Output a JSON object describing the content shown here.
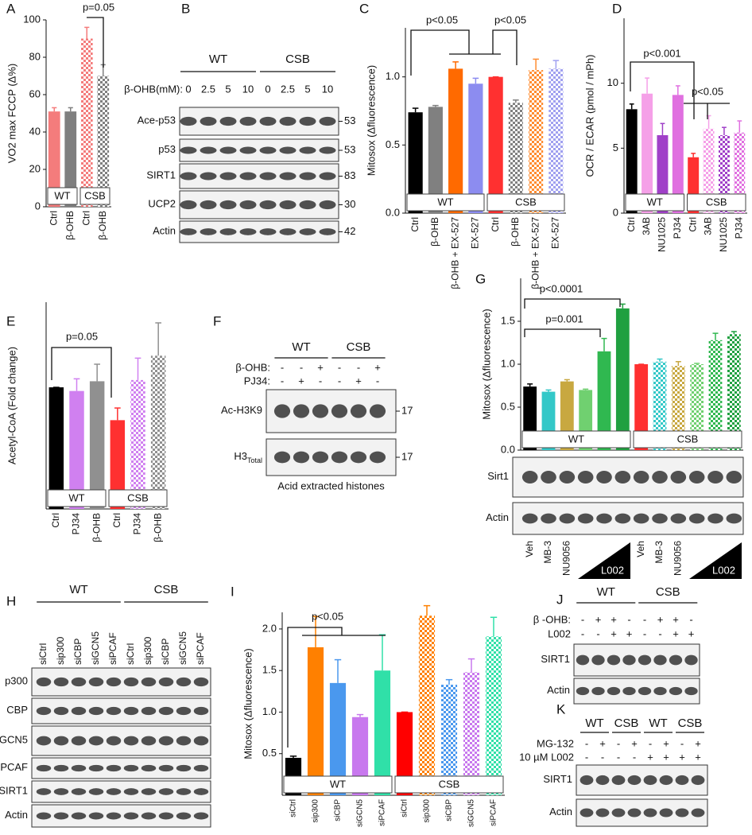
{
  "chart_data": [
    {
      "panel": "A",
      "type": "bar",
      "y_label": "VO2 max FCCP (Δ%)",
      "categories": [
        "Ctrl",
        "β-OHB",
        "Ctrl",
        "β-OHB"
      ],
      "values": [
        51,
        51,
        90,
        70
      ],
      "errors": [
        2,
        2,
        6,
        6
      ],
      "colors": [
        "#f47c7c",
        "#7f7f7f",
        "#f47c7c",
        "#7f7f7f"
      ],
      "checkered": [
        false,
        false,
        true,
        true
      ],
      "groups": [
        "WT",
        "CSB"
      ],
      "annotations": [
        "p=0.05"
      ],
      "ylim": [
        0,
        100
      ],
      "yticks": [
        0,
        20,
        40,
        60,
        80,
        100
      ]
    },
    {
      "panel": "C",
      "type": "bar",
      "y_label": "Mitosox (Δfluorescence)",
      "categories": [
        "Ctrl",
        "β-OHB",
        "β-OHB + EX-527",
        "EX-527",
        "Ctrl",
        "β-OHB",
        "β-OHB + EX-527",
        "EX-527"
      ],
      "values": [
        0.74,
        0.78,
        1.06,
        0.95,
        1.0,
        0.81,
        1.05,
        1.06
      ],
      "errors": [
        0.03,
        0.01,
        0.05,
        0.04,
        0,
        0.02,
        0.08,
        0.06
      ],
      "colors": [
        "#000000",
        "#808080",
        "#ff6a00",
        "#8c8cf0",
        "#ff3030",
        "#808080",
        "#ff8c30",
        "#a0a0f0"
      ],
      "checkered": [
        false,
        false,
        false,
        false,
        false,
        true,
        true,
        true
      ],
      "groups": [
        "WT",
        "CSB"
      ],
      "annotations": [
        "p<0.05",
        "p<0.05"
      ],
      "ylim": [
        0,
        1.36
      ],
      "yticks": [
        {
          "value": 0,
          "label": "0.0"
        },
        0.5,
        {
          "value": 1,
          "label": "1.0"
        }
      ]
    },
    {
      "panel": "D",
      "type": "bar",
      "y_label": "OCR / ECAR (pmol / mPh)",
      "categories": [
        "Ctrl",
        "3AB",
        "NU1025",
        "PJ34",
        "Ctrl",
        "3AB",
        "NU1025",
        "PJ34"
      ],
      "values": [
        8.0,
        9.2,
        6.0,
        9.1,
        4.3,
        6.5,
        6.0,
        6.2
      ],
      "errors": [
        0.4,
        1.2,
        0.9,
        0.7,
        0.3,
        1.0,
        0.6,
        0.9
      ],
      "colors": [
        "#000000",
        "#f5a0e8",
        "#a040c8",
        "#e070e0",
        "#ff3030",
        "#f5a0e8",
        "#a040c8",
        "#e070e0"
      ],
      "checkered": [
        false,
        false,
        false,
        false,
        false,
        true,
        true,
        true
      ],
      "groups": [
        "WT",
        "CSB"
      ],
      "annotations": [
        "p<0.001",
        "p<0.05"
      ],
      "ylim": [
        0,
        15
      ],
      "yticks": [
        0,
        5,
        10
      ]
    },
    {
      "panel": "E",
      "type": "bar",
      "y_label": "Acetyl-CoA (Fold change)",
      "categories": [
        "Ctrl",
        "PJ34",
        "β-OHB",
        "Ctrl",
        "PJ34",
        "β-OHB"
      ],
      "values": [
        1.0,
        0.97,
        1.05,
        0.73,
        1.06,
        1.26
      ],
      "errors": [
        0,
        0.1,
        0.14,
        0.1,
        0.18,
        0.27
      ],
      "colors": [
        "#000000",
        "#d080f0",
        "#909090",
        "#ff3030",
        "#d080f0",
        "#909090"
      ],
      "checkered": [
        false,
        false,
        false,
        false,
        true,
        true
      ],
      "groups": [
        "WT",
        "CSB"
      ],
      "annotations": [
        "p=0.05"
      ],
      "ylim": [
        0,
        1.7
      ]
    },
    {
      "panel": "G",
      "type": "bar",
      "y_label": "Mitosox (Δfluorescence)",
      "categories": [
        "Veh",
        "MB-3",
        "NU9056",
        null,
        "L002",
        null,
        "Veh",
        "MB-3",
        "NU9056",
        null,
        "L002",
        null
      ],
      "values": [
        0.74,
        0.68,
        0.8,
        0.7,
        1.15,
        1.65,
        1.0,
        1.03,
        0.98,
        1.0,
        1.28,
        1.35
      ],
      "errors": [
        0.03,
        0.02,
        0.02,
        0.01,
        0.15,
        0.05,
        0,
        0.03,
        0.05,
        0.01,
        0.08,
        0.03
      ],
      "colors": [
        "#000000",
        "#33c8c8",
        "#c8a840",
        "#70d070",
        "#30b850",
        "#20a040",
        "#ff3030",
        "#33c8c8",
        "#c8a840",
        "#70d070",
        "#30b850",
        "#20a040"
      ],
      "checkered": [
        false,
        false,
        false,
        false,
        false,
        false,
        false,
        true,
        true,
        true,
        true,
        true
      ],
      "groups": [
        "WT",
        "CSB"
      ],
      "annotations": [
        "p<0.0001",
        "p=0.001"
      ],
      "ylim": [
        0,
        2
      ],
      "yticks": [
        {
          "value": 0,
          "label": "0.0"
        },
        0.5,
        {
          "value": 1,
          "label": "1.0"
        },
        1.5
      ]
    },
    {
      "panel": "I",
      "type": "bar",
      "y_label": "Mitosox (Δfluorescence)",
      "categories": [
        "siCtrl",
        "sip300",
        "siCBP",
        "siGCN5",
        "siPCAF",
        "siCtrl",
        "sip300",
        "siCBP",
        "siGCN5",
        "siPCAF"
      ],
      "values": [
        0.45,
        1.78,
        1.35,
        0.94,
        1.5,
        1.0,
        2.16,
        1.33,
        1.48,
        1.91
      ],
      "errors": [
        0.02,
        0.37,
        0.28,
        0.03,
        0.43,
        0,
        0.12,
        0.06,
        0.16,
        0.23
      ],
      "colors": [
        "#000000",
        "#ff8000",
        "#4a98ee",
        "#c878ee",
        "#30e0a8",
        "#ff0000",
        "#ff8000",
        "#4a98ee",
        "#c878ee",
        "#30e0a8"
      ],
      "checkered": [
        false,
        false,
        false,
        false,
        false,
        false,
        true,
        true,
        true,
        true
      ],
      "groups": [
        "WT",
        "CSB"
      ],
      "annotations": [
        "p<0.05"
      ],
      "ylim": [
        0,
        2.2
      ],
      "yticks": [
        0.5,
        {
          "value": 1,
          "label": "1.0"
        },
        1.5,
        {
          "value": 2,
          "label": "2.0"
        }
      ]
    }
  ],
  "blots": {
    "B": {
      "letter": "B",
      "groups": [
        "WT",
        "CSB"
      ],
      "conditions": [
        {
          "label": "β-OHB(mM):",
          "values": [
            "0",
            "2.5",
            "5",
            "10",
            "0",
            "2.5",
            "5",
            "10"
          ]
        }
      ],
      "rows": [
        {
          "label": "Ace-p53",
          "mw": "53"
        },
        {
          "label": "p53",
          "mw": "53"
        },
        {
          "label": "SIRT1",
          "mw": "83"
        },
        {
          "label": "UCP2",
          "mw": "30"
        },
        {
          "label": "Actin",
          "mw": "42"
        }
      ]
    },
    "F": {
      "letter": "F",
      "groups": [
        "WT",
        "CSB"
      ],
      "conditions": [
        {
          "label": "β-OHB:",
          "values": [
            "-",
            "-",
            "+",
            "-",
            "-",
            "+"
          ]
        },
        {
          "label": "PJ34:",
          "values": [
            "-",
            "+",
            "-",
            "-",
            "+",
            "-"
          ]
        }
      ],
      "rows": [
        {
          "label": "Ac-H3K9",
          "mw": "17"
        },
        {
          "label": "H3",
          "sub": "Total",
          "mw": "17"
        }
      ],
      "caption": "Acid extracted histones"
    },
    "G": {
      "rows": [
        {
          "label": "Sirt1"
        },
        {
          "label": "Actin"
        }
      ]
    },
    "H": {
      "letter": "H",
      "groups": [
        "WT",
        "CSB"
      ],
      "conditions": [
        {
          "values": [
            "siCtrl",
            "sip300",
            "siCBP",
            "siGCN5",
            "siPCAF",
            "siCtrl",
            "sip300",
            "siCBP",
            "siGCN5",
            "siPCAF"
          ]
        }
      ],
      "rows": [
        {
          "label": "p300"
        },
        {
          "label": "CBP"
        },
        {
          "label": "GCN5"
        },
        {
          "label": "PCAF"
        },
        {
          "label": "SIRT1"
        },
        {
          "label": "Actin"
        }
      ]
    },
    "J": {
      "letter": "J",
      "groups": [
        "WT",
        "CSB"
      ],
      "conditions": [
        {
          "label": "β -OHB:",
          "values": [
            "-",
            "+",
            "+",
            "-",
            "-",
            "+",
            "+",
            "-"
          ]
        },
        {
          "label": "L002",
          "values": [
            "-",
            "-",
            "+",
            "+",
            "-",
            "-",
            "+",
            "+"
          ]
        }
      ],
      "rows": [
        {
          "label": "SIRT1"
        },
        {
          "label": "Actin"
        }
      ]
    },
    "K": {
      "letter": "K",
      "groups": [
        "WT",
        "CSB",
        "WT",
        "CSB"
      ],
      "conditions": [
        {
          "label": "MG-132",
          "values": [
            "-",
            "+",
            "-",
            "+",
            "-",
            "+",
            "-",
            "+"
          ]
        },
        {
          "label": "10 µM L002",
          "values": [
            "-",
            "-",
            "-",
            "-",
            "+",
            "+",
            "+",
            "+"
          ]
        }
      ],
      "rows": [
        {
          "label": "SIRT1"
        },
        {
          "label": "Actin"
        }
      ]
    }
  }
}
